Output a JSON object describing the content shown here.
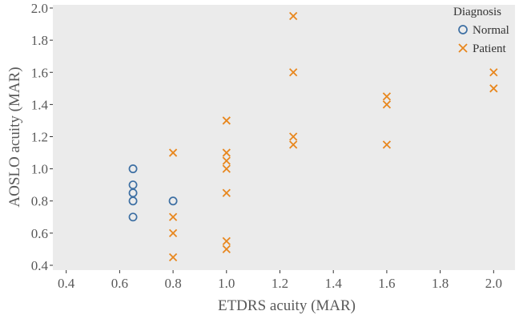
{
  "chart_data": {
    "type": "scatter",
    "title": "",
    "xlabel": "ETDRS acuity (MAR)",
    "ylabel": "AOSLO acuity (MAR)",
    "xlim": [
      0.35,
      2.08
    ],
    "ylim": [
      0.37,
      2.02
    ],
    "xticks": [
      0.4,
      0.6,
      0.8,
      1.0,
      1.2,
      1.4,
      1.6,
      1.8,
      2.0
    ],
    "yticks": [
      0.4,
      0.6,
      0.8,
      1.0,
      1.2,
      1.4,
      1.6,
      1.8,
      2.0
    ],
    "grid": false,
    "background": "#ebebeb",
    "legend": {
      "title": "Diagnosis",
      "placement": "top-right"
    },
    "series": [
      {
        "name": "Normal",
        "marker": "circle",
        "color": "#3d6fa3",
        "points": [
          [
            0.65,
            1.0
          ],
          [
            0.65,
            0.9
          ],
          [
            0.65,
            0.85
          ],
          [
            0.65,
            0.8
          ],
          [
            0.65,
            0.7
          ],
          [
            0.8,
            0.8
          ]
        ]
      },
      {
        "name": "Patient",
        "marker": "x",
        "color": "#e8871e",
        "points": [
          [
            0.8,
            1.1
          ],
          [
            0.8,
            0.7
          ],
          [
            0.8,
            0.6
          ],
          [
            0.8,
            0.45
          ],
          [
            1.0,
            1.3
          ],
          [
            1.0,
            1.1
          ],
          [
            1.0,
            1.05
          ],
          [
            1.0,
            1.0
          ],
          [
            1.0,
            0.85
          ],
          [
            1.0,
            0.55
          ],
          [
            1.0,
            0.5
          ],
          [
            1.25,
            1.95
          ],
          [
            1.25,
            1.6
          ],
          [
            1.25,
            1.2
          ],
          [
            1.25,
            1.15
          ],
          [
            1.6,
            1.45
          ],
          [
            1.6,
            1.4
          ],
          [
            1.6,
            1.15
          ],
          [
            2.0,
            1.6
          ],
          [
            2.0,
            1.5
          ]
        ]
      }
    ]
  }
}
